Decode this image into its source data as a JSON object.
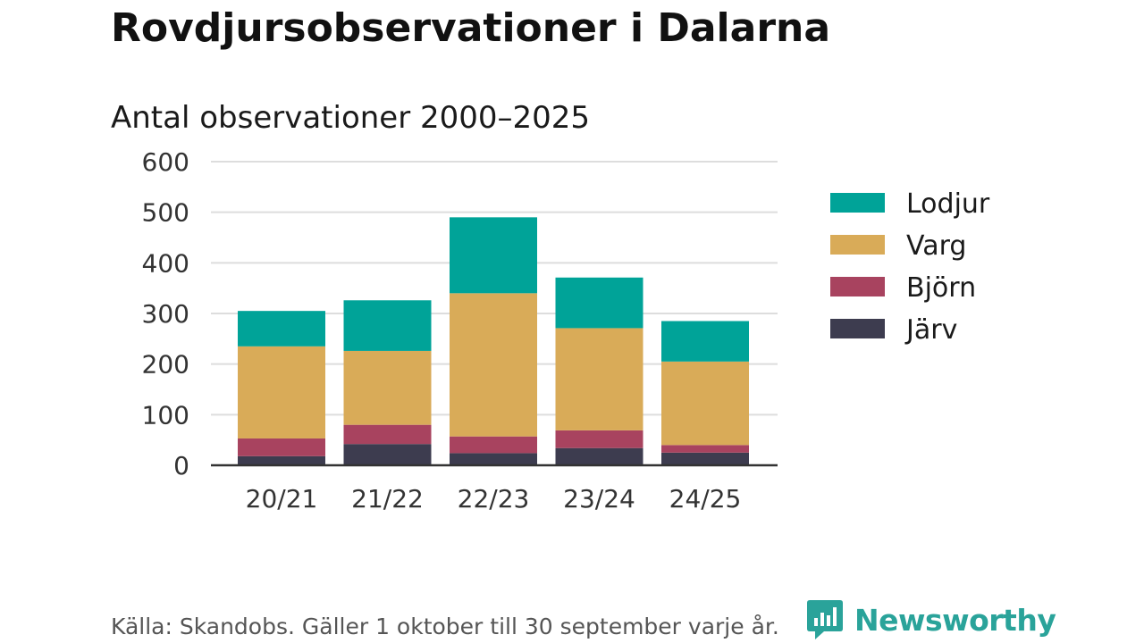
{
  "title": "Rovdjursobservationer i Dalarna",
  "subtitle": "Antal observationer 2000–2025",
  "source": "Källa: Skandobs. Gäller 1 oktober till 30 september varje år.",
  "brand": {
    "name": "Newsworthy",
    "icon": "newsworthy-logo-icon",
    "color": "#2aa39a"
  },
  "chart_data": {
    "type": "bar",
    "stacked": true,
    "title": "Antal observationer 2000–2025",
    "xlabel": "",
    "ylabel": "",
    "ylim": [
      0,
      600
    ],
    "yticks": [
      0,
      100,
      200,
      300,
      400,
      500,
      600
    ],
    "ytick_labels": [
      "0",
      "100",
      "200",
      "300",
      "400",
      "500",
      "600"
    ],
    "grid": true,
    "legend_position": "right",
    "categories": [
      "20/21",
      "21/22",
      "22/23",
      "23/24",
      "24/25"
    ],
    "series": [
      {
        "name": "Järv",
        "color": "#3d3c4f",
        "values": [
          18,
          42,
          24,
          34,
          25
        ]
      },
      {
        "name": "Björn",
        "color": "#a8435f",
        "values": [
          35,
          38,
          33,
          35,
          15
        ]
      },
      {
        "name": "Varg",
        "color": "#d9ab58",
        "values": [
          182,
          146,
          283,
          202,
          165
        ]
      },
      {
        "name": "Lodjur",
        "color": "#00a398",
        "values": [
          70,
          100,
          150,
          100,
          80
        ]
      }
    ],
    "legend_order": [
      "Lodjur",
      "Varg",
      "Björn",
      "Järv"
    ]
  }
}
